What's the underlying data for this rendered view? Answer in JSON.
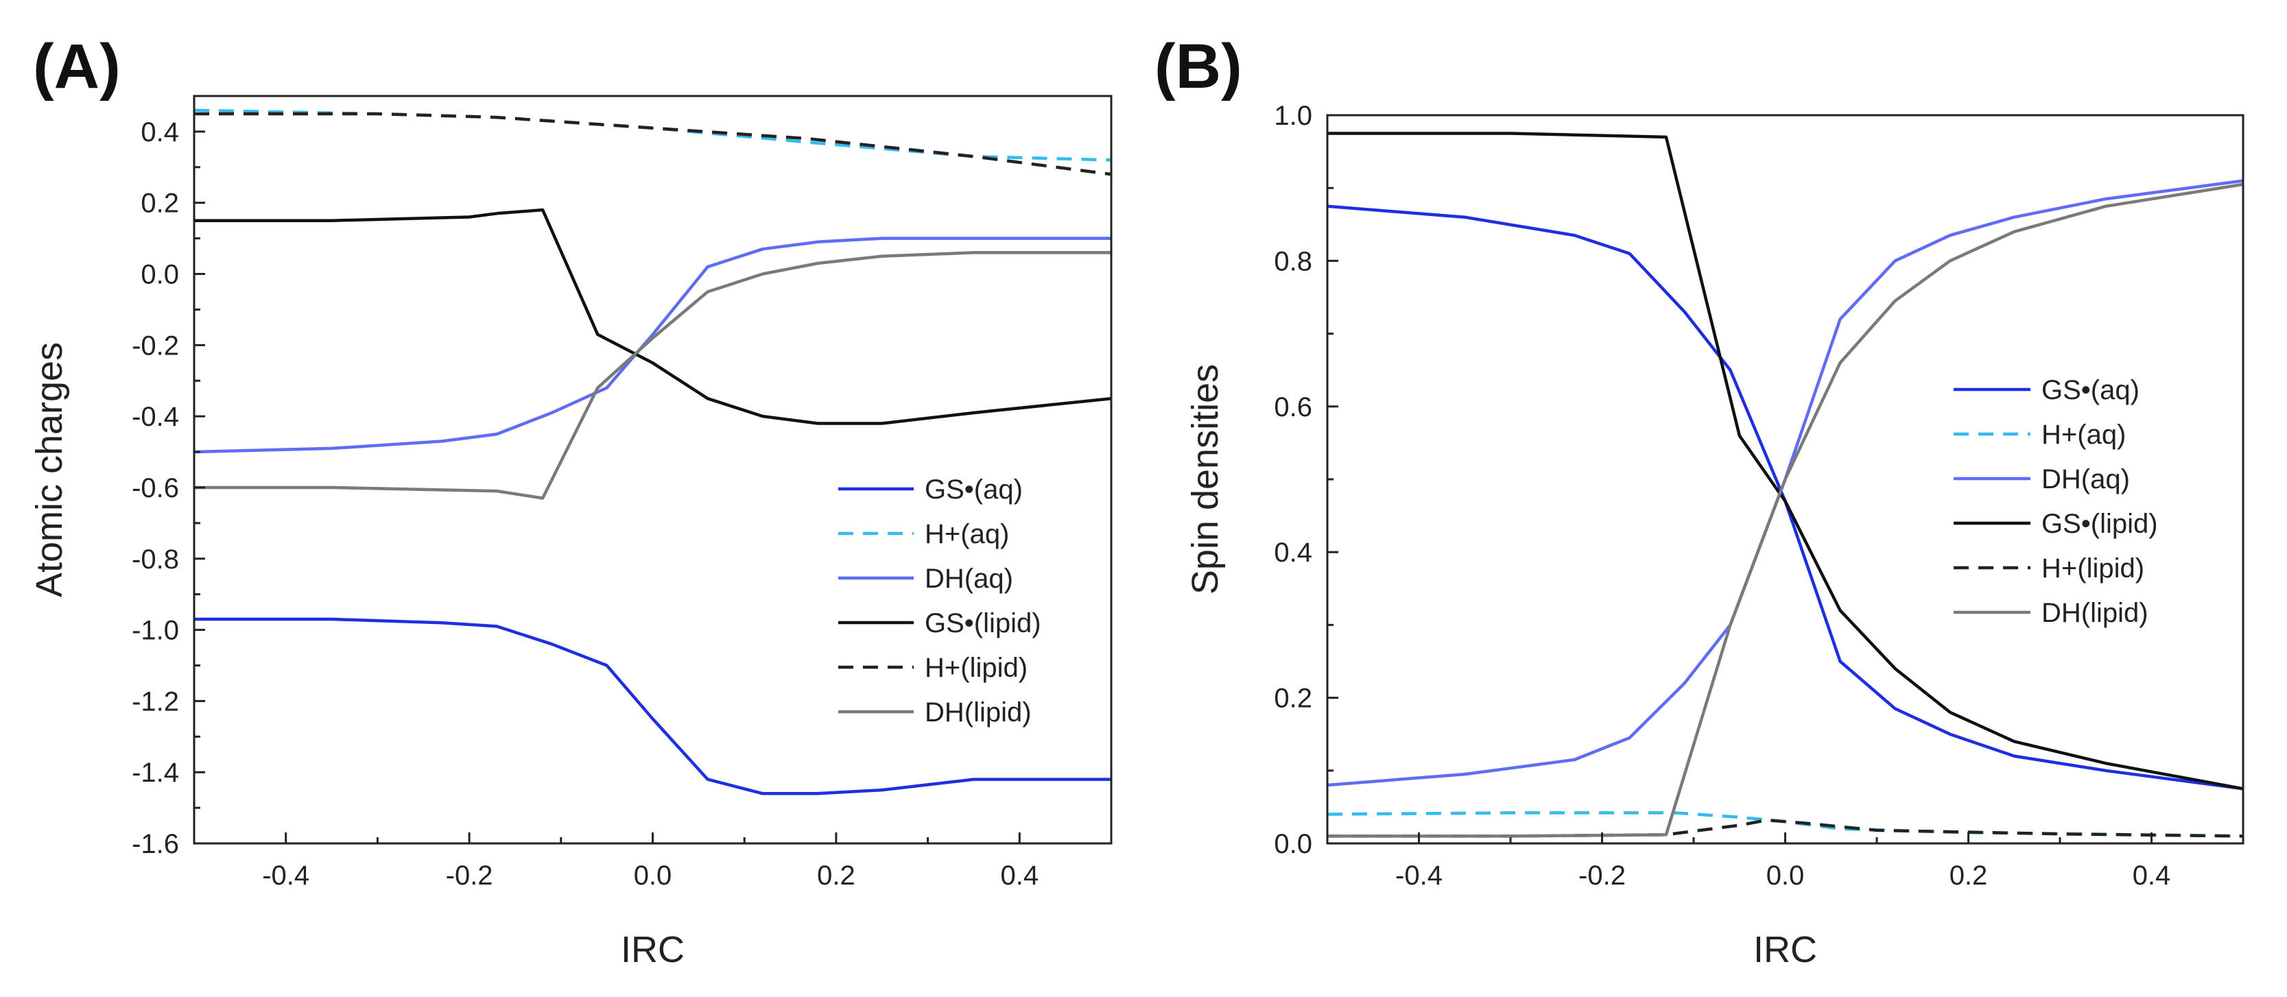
{
  "chart_data": [
    {
      "panel": "(A)",
      "type": "line",
      "xlabel": "IRC",
      "ylabel": "Atomic charges",
      "xlim": [
        -0.5,
        0.5
      ],
      "ylim": [
        -1.6,
        0.5
      ],
      "xticks": [
        -0.4,
        -0.2,
        0.0,
        0.2,
        0.4
      ],
      "xtick_labels": [
        "-0.4",
        "-0.2",
        "0.0",
        "0.2",
        "0.4"
      ],
      "yticks": [
        -1.6,
        -1.4,
        -1.2,
        -1.0,
        -0.8,
        -0.6,
        -0.4,
        -0.2,
        0.0,
        0.2,
        0.4
      ],
      "ytick_labels": [
        "-1.6",
        "-1.4",
        "-1.2",
        "-1.0",
        "-0.8",
        "-0.6",
        "-0.4",
        "-0.2",
        "0.0",
        "0.2",
        "0.4"
      ],
      "legend_position": "lower-right",
      "grid": false,
      "series": [
        {
          "name": "GS•(aq)",
          "color": "#1f2fe0",
          "dash": "solid",
          "x": [
            -0.5,
            -0.35,
            -0.23,
            -0.17,
            -0.11,
            -0.05,
            0.0,
            0.06,
            0.12,
            0.18,
            0.25,
            0.35,
            0.5
          ],
          "y": [
            -0.97,
            -0.97,
            -0.98,
            -0.99,
            -1.04,
            -1.1,
            -1.25,
            -1.42,
            -1.46,
            -1.46,
            -1.45,
            -1.42,
            -1.42
          ]
        },
        {
          "name": "H+(aq)",
          "color": "#33bbee",
          "dash": "dashed",
          "x": [
            -0.5,
            -0.3,
            -0.17,
            0.0,
            0.17,
            0.35,
            0.5
          ],
          "y": [
            0.46,
            0.45,
            0.44,
            0.41,
            0.37,
            0.33,
            0.32
          ]
        },
        {
          "name": "DH(aq)",
          "color": "#5f6cf5",
          "dash": "solid",
          "x": [
            -0.5,
            -0.35,
            -0.23,
            -0.17,
            -0.11,
            -0.05,
            0.0,
            0.06,
            0.12,
            0.18,
            0.25,
            0.35,
            0.5
          ],
          "y": [
            -0.5,
            -0.49,
            -0.47,
            -0.45,
            -0.39,
            -0.32,
            -0.17,
            0.02,
            0.07,
            0.09,
            0.1,
            0.1,
            0.1
          ]
        },
        {
          "name": "GS•(lipid)",
          "color": "#111111",
          "dash": "solid",
          "x": [
            -0.5,
            -0.35,
            -0.2,
            -0.17,
            -0.12,
            -0.06,
            0.0,
            0.06,
            0.12,
            0.18,
            0.25,
            0.35,
            0.5
          ],
          "y": [
            0.15,
            0.15,
            0.16,
            0.17,
            0.18,
            -0.17,
            -0.25,
            -0.35,
            -0.4,
            -0.42,
            -0.42,
            -0.39,
            -0.35
          ]
        },
        {
          "name": "H+(lipid)",
          "color": "#222222",
          "dash": "dashed",
          "x": [
            -0.5,
            -0.3,
            -0.17,
            0.0,
            0.17,
            0.35,
            0.5
          ],
          "y": [
            0.45,
            0.45,
            0.44,
            0.41,
            0.38,
            0.33,
            0.28
          ]
        },
        {
          "name": "DH(lipid)",
          "color": "#7a7a7a",
          "dash": "solid",
          "x": [
            -0.5,
            -0.35,
            -0.17,
            -0.12,
            -0.06,
            0.0,
            0.06,
            0.12,
            0.18,
            0.25,
            0.35,
            0.5
          ],
          "y": [
            -0.6,
            -0.6,
            -0.61,
            -0.63,
            -0.32,
            -0.18,
            -0.05,
            0.0,
            0.03,
            0.05,
            0.06,
            0.06
          ]
        }
      ]
    },
    {
      "panel": "(B)",
      "type": "line",
      "xlabel": "IRC",
      "ylabel": "Spin densities",
      "xlim": [
        -0.5,
        0.5
      ],
      "ylim": [
        0.0,
        1.0
      ],
      "xticks": [
        -0.4,
        -0.2,
        0.0,
        0.2,
        0.4
      ],
      "xtick_labels": [
        "-0.4",
        "-0.2",
        "0.0",
        "0.2",
        "0.4"
      ],
      "yticks": [
        0.0,
        0.2,
        0.4,
        0.6,
        0.8,
        1.0
      ],
      "ytick_labels": [
        "0.0",
        "0.2",
        "0.4",
        "0.6",
        "0.8",
        "1.0"
      ],
      "legend_position": "center-right",
      "grid": false,
      "series": [
        {
          "name": "GS•(aq)",
          "color": "#1f2fe0",
          "dash": "solid",
          "x": [
            -0.5,
            -0.35,
            -0.23,
            -0.17,
            -0.11,
            -0.06,
            0.0,
            0.06,
            0.12,
            0.18,
            0.25,
            0.35,
            0.5
          ],
          "y": [
            0.875,
            0.86,
            0.835,
            0.81,
            0.73,
            0.65,
            0.47,
            0.25,
            0.185,
            0.15,
            0.12,
            0.1,
            0.075
          ]
        },
        {
          "name": "H+(aq)",
          "color": "#33bbee",
          "dash": "dashed",
          "x": [
            -0.5,
            -0.3,
            -0.12,
            -0.05,
            0.0,
            0.06,
            0.2,
            0.5
          ],
          "y": [
            0.04,
            0.042,
            0.042,
            0.036,
            0.03,
            0.02,
            0.015,
            0.01
          ]
        },
        {
          "name": "DH(aq)",
          "color": "#5f6cf5",
          "dash": "solid",
          "x": [
            -0.5,
            -0.35,
            -0.23,
            -0.17,
            -0.11,
            -0.06,
            0.0,
            0.06,
            0.12,
            0.18,
            0.25,
            0.35,
            0.5
          ],
          "y": [
            0.08,
            0.095,
            0.115,
            0.145,
            0.22,
            0.3,
            0.5,
            0.72,
            0.8,
            0.835,
            0.86,
            0.885,
            0.91
          ]
        },
        {
          "name": "GS•(lipid)",
          "color": "#111111",
          "dash": "solid",
          "x": [
            -0.5,
            -0.3,
            -0.13,
            -0.05,
            0.0,
            0.06,
            0.12,
            0.18,
            0.25,
            0.35,
            0.5
          ],
          "y": [
            0.975,
            0.975,
            0.97,
            0.56,
            0.47,
            0.32,
            0.24,
            0.18,
            0.14,
            0.11,
            0.075
          ]
        },
        {
          "name": "H+(lipid)",
          "color": "#222222",
          "dash": "dashed",
          "x": [
            -0.5,
            -0.3,
            -0.13,
            -0.05,
            -0.02,
            0.02,
            0.1,
            0.3,
            0.5
          ],
          "y": [
            0.01,
            0.01,
            0.012,
            0.025,
            0.032,
            0.028,
            0.018,
            0.013,
            0.01
          ]
        },
        {
          "name": "DH(lipid)",
          "color": "#7a7a7a",
          "dash": "solid",
          "x": [
            -0.5,
            -0.3,
            -0.13,
            -0.06,
            0.0,
            0.06,
            0.12,
            0.18,
            0.25,
            0.35,
            0.5
          ],
          "y": [
            0.01,
            0.01,
            0.012,
            0.3,
            0.5,
            0.66,
            0.745,
            0.8,
            0.84,
            0.875,
            0.905
          ]
        }
      ]
    }
  ]
}
